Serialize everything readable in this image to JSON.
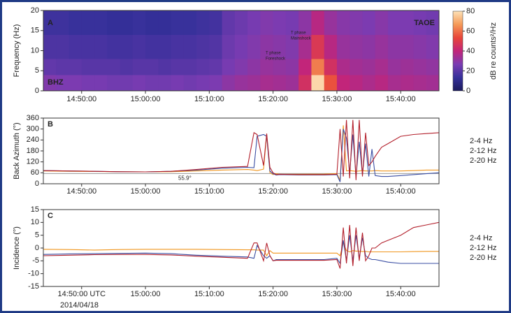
{
  "chart_data": [
    {
      "type": "spectrogram",
      "label": "A",
      "station": "TAOE",
      "channel": "BHZ",
      "y_label": "Frequency (Hz)",
      "annotations": [
        {
          "lines": [
            "T phase",
            "Mainshock"
          ]
        },
        {
          "lines": [
            "T phase",
            "Foreshock"
          ]
        }
      ],
      "xlim": [
        "14:44:00",
        "15:46:00"
      ],
      "xticks": [
        "14:50:00",
        "15:00:00",
        "15:10:00",
        "15:20:00",
        "15:30:00",
        "15:40:00"
      ],
      "ylim": [
        0,
        20
      ],
      "yticks": [
        0,
        5,
        10,
        15,
        20
      ],
      "colormap": [
        "#1b1a5c",
        "#35309a",
        "#7a3cb2",
        "#c2257a",
        "#e8463a",
        "#f59a58",
        "#fde2b8"
      ],
      "colorbar": {
        "label": "dB re counts²/Hz",
        "clim": [
          0,
          80
        ],
        "ticks": [
          0,
          20,
          40,
          60,
          80
        ]
      },
      "spectrogram": {
        "times": [
          "14:44:00",
          "14:46:00",
          "14:48:00",
          "14:50:00",
          "14:52:00",
          "14:54:00",
          "14:56:00",
          "14:58:00",
          "15:00:00",
          "15:02:00",
          "15:04:00",
          "15:06:00",
          "15:08:00",
          "15:10:00",
          "15:12:00",
          "15:14:00",
          "15:16:00",
          "15:18:00",
          "15:20:00",
          "15:22:00",
          "15:24:00",
          "15:26:00",
          "15:28:00",
          "15:30:00",
          "15:32:00",
          "15:34:00",
          "15:36:00",
          "15:38:00",
          "15:40:00",
          "15:42:00",
          "15:44:00",
          "15:46:00"
        ],
        "frequencies": [
          0,
          4,
          8,
          14,
          20
        ],
        "values": [
          [
            28,
            27,
            27,
            26,
            26,
            25,
            25,
            26,
            25,
            25,
            26,
            25,
            26,
            27,
            30,
            32,
            33,
            35,
            34,
            33,
            45,
            78,
            55,
            40,
            38,
            36,
            38,
            35,
            36,
            35,
            34
          ],
          [
            22,
            21,
            21,
            20,
            20,
            20,
            19,
            20,
            20,
            19,
            20,
            20,
            21,
            22,
            26,
            28,
            30,
            32,
            31,
            30,
            40,
            62,
            45,
            36,
            34,
            33,
            35,
            32,
            33,
            32,
            31
          ],
          [
            18,
            18,
            17,
            17,
            17,
            16,
            16,
            17,
            16,
            16,
            17,
            17,
            18,
            19,
            24,
            26,
            28,
            30,
            29,
            28,
            35,
            48,
            38,
            32,
            31,
            30,
            32,
            30,
            30,
            29,
            28
          ],
          [
            15,
            15,
            14,
            14,
            14,
            13,
            13,
            14,
            13,
            13,
            14,
            14,
            15,
            16,
            22,
            24,
            26,
            28,
            27,
            26,
            30,
            38,
            32,
            29,
            28,
            27,
            29,
            27,
            27,
            26,
            25
          ]
        ]
      }
    },
    {
      "type": "line",
      "label": "B",
      "y_label": "Back Azimuth (°)",
      "xlim": [
        "14:44:00",
        "15:46:00"
      ],
      "xticks": [
        "14:50:00",
        "15:00:00",
        "15:10:00",
        "15:20:00",
        "15:30:00",
        "15:40:00"
      ],
      "ylim": [
        0,
        360
      ],
      "yticks": [
        0,
        60,
        120,
        180,
        240,
        300,
        360
      ],
      "reference_line": {
        "value": 55.9,
        "label": "55.9°",
        "color": "#999999"
      },
      "x": [
        "14:44:00",
        "14:48:00",
        "14:52:00",
        "14:56:00",
        "15:00:00",
        "15:04:00",
        "15:08:00",
        "15:12:00",
        "15:16:00",
        "15:17:00",
        "15:17:30",
        "15:18:30",
        "15:19:00",
        "15:19:30",
        "15:20:00",
        "15:20:30",
        "15:21:00",
        "15:24:00",
        "15:28:00",
        "15:30:00",
        "15:30:30",
        "15:31:00",
        "15:31:30",
        "15:32:00",
        "15:32:30",
        "15:33:00",
        "15:33:30",
        "15:34:00",
        "15:34:30",
        "15:35:00",
        "15:35:30",
        "15:36:00",
        "15:37:00",
        "15:38:00",
        "15:40:00",
        "15:42:00",
        "15:44:00",
        "15:46:00"
      ],
      "series": [
        {
          "name": "2-4 Hz",
          "color": "#f0961e",
          "values": [
            70,
            68,
            67,
            66,
            65,
            66,
            70,
            75,
            78,
            75,
            72,
            80,
            270,
            60,
            50,
            55,
            52,
            52,
            53,
            55,
            20,
            320,
            70,
            72,
            70,
            68,
            70,
            72,
            70,
            70,
            70,
            72,
            70,
            70,
            70,
            72,
            75,
            75
          ]
        },
        {
          "name": "2-12 Hz",
          "color": "#3a4ea3",
          "values": [
            72,
            70,
            68,
            66,
            65,
            68,
            75,
            85,
            90,
            88,
            260,
            270,
            260,
            70,
            55,
            48,
            50,
            48,
            48,
            50,
            10,
            300,
            250,
            60,
            270,
            40,
            230,
            50,
            220,
            40,
            190,
            45,
            40,
            40,
            45,
            50,
            55,
            60
          ]
        },
        {
          "name": "2-20 Hz",
          "color": "#b3202c",
          "values": [
            72,
            70,
            68,
            66,
            65,
            68,
            78,
            90,
            95,
            280,
            270,
            100,
            275,
            90,
            60,
            50,
            52,
            50,
            50,
            52,
            300,
            40,
            350,
            30,
            350,
            20,
            350,
            40,
            280,
            100,
            120,
            150,
            200,
            220,
            260,
            270,
            275,
            280
          ]
        }
      ]
    },
    {
      "type": "line",
      "label": "C",
      "y_label": "Incidence (°)",
      "date": "2014/04/18",
      "xlim": [
        "14:44:00",
        "15:46:00"
      ],
      "xticks": [
        {
          "value": "14:50:00",
          "label": "14:50:00 UTC"
        },
        "15:00:00",
        "15:10:00",
        "15:20:00",
        "15:30:00",
        "15:40:00"
      ],
      "ylim": [
        -15,
        15
      ],
      "yticks": [
        -15,
        -10,
        -5,
        0,
        5,
        10,
        15
      ],
      "x": [
        "14:44:00",
        "14:48:00",
        "14:52:00",
        "14:56:00",
        "15:00:00",
        "15:04:00",
        "15:08:00",
        "15:12:00",
        "15:16:00",
        "15:17:00",
        "15:17:30",
        "15:18:30",
        "15:19:00",
        "15:19:30",
        "15:20:00",
        "15:20:30",
        "15:21:00",
        "15:24:00",
        "15:28:00",
        "15:30:00",
        "15:30:30",
        "15:31:00",
        "15:31:30",
        "15:32:00",
        "15:32:30",
        "15:33:00",
        "15:33:30",
        "15:34:00",
        "15:34:30",
        "15:35:00",
        "15:35:30",
        "15:36:00",
        "15:37:00",
        "15:38:00",
        "15:40:00",
        "15:42:00",
        "15:44:00",
        "15:46:00"
      ],
      "series": [
        {
          "name": "2-4 Hz",
          "color": "#f0961e",
          "values": [
            -0.5,
            -0.6,
            -0.8,
            -0.6,
            -0.5,
            -0.5,
            -0.5,
            -0.6,
            -0.7,
            -0.7,
            -0.8,
            -0.8,
            -3,
            -1,
            -2,
            -2,
            -2,
            -2,
            -2,
            -2,
            -3,
            2,
            -1,
            -1.5,
            -1,
            -1.2,
            -1.2,
            -1.4,
            -1.3,
            -1.5,
            -1.5,
            -1.5,
            -1.5,
            -1.5,
            -1.5,
            -1.4,
            -1.3,
            -1.3
          ]
        },
        {
          "name": "2-12 Hz",
          "color": "#3a4ea3",
          "values": [
            -2.5,
            -2.3,
            -2.2,
            -2.1,
            -2,
            -2.2,
            -2.8,
            -3.2,
            -3.5,
            -4,
            1,
            -3,
            -4,
            -3,
            -5,
            -4.5,
            -4.5,
            -4.5,
            -4.5,
            -4,
            -6,
            3,
            -5,
            5,
            -5,
            5,
            -4,
            4,
            -3,
            -4,
            -4.5,
            -4.5,
            -5,
            -5.5,
            -6,
            -6,
            -6,
            -6
          ]
        },
        {
          "name": "2-20 Hz",
          "color": "#b3202c",
          "values": [
            -3,
            -2.8,
            -2.6,
            -2.5,
            -2.5,
            -2.7,
            -3.2,
            -3.6,
            -4,
            2,
            2,
            -5,
            2,
            -3,
            -5,
            -4.8,
            -4.8,
            -4.8,
            -4.8,
            -4.5,
            -8,
            8,
            -6,
            9,
            -7,
            8,
            -5,
            6,
            -5,
            -3,
            0,
            0,
            2,
            3,
            5,
            8,
            9,
            10
          ]
        }
      ]
    }
  ]
}
